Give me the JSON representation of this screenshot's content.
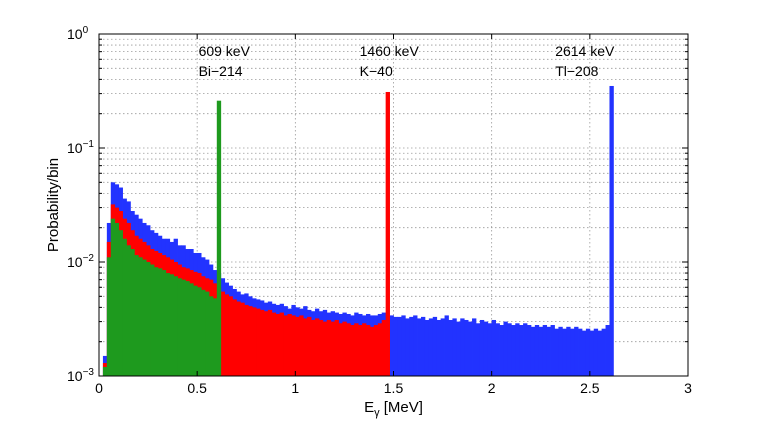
{
  "chart_data": {
    "type": "bar",
    "title": "",
    "xlabel_main": "E",
    "xlabel_sub": "γ",
    "xlabel_unit": " [MeV]",
    "ylabel": "Probability/bin",
    "xlim": [
      0,
      3
    ],
    "ylim": [
      0.001,
      1
    ],
    "yscale": "log",
    "grid": true,
    "legend": "none",
    "bin_width": 0.02,
    "x_ticks": [
      {
        "value": 0,
        "label": "0"
      },
      {
        "value": 0.5,
        "label": "0.5"
      },
      {
        "value": 1,
        "label": "1"
      },
      {
        "value": 1.5,
        "label": "1.5"
      },
      {
        "value": 2,
        "label": "2"
      },
      {
        "value": 2.5,
        "label": "2.5"
      },
      {
        "value": 3,
        "label": "3"
      }
    ],
    "y_ticks": [
      {
        "value": 0.001,
        "base": "10",
        "exp": "−3"
      },
      {
        "value": 0.01,
        "base": "10",
        "exp": "−2"
      },
      {
        "value": 0.1,
        "base": "10",
        "exp": "−1"
      },
      {
        "value": 1,
        "base": "10",
        "exp": "0"
      }
    ],
    "annotations": [
      {
        "energy": "609 keV",
        "isotope": "Bi−214",
        "x": 0.609
      },
      {
        "energy": "1460 keV",
        "isotope": "K−40",
        "x": 1.46
      },
      {
        "energy": "2614 keV",
        "isotope": "Tl−208",
        "x": 2.614
      }
    ],
    "series": [
      {
        "color": "#2233ff",
        "bins": [
          [
            0.03,
            0.0015
          ],
          [
            0.05,
            0.022
          ],
          [
            0.07,
            0.05
          ],
          [
            0.09,
            0.048
          ],
          [
            0.11,
            0.045
          ],
          [
            0.13,
            0.036
          ],
          [
            0.15,
            0.034
          ],
          [
            0.17,
            0.028
          ],
          [
            0.19,
            0.026
          ],
          [
            0.21,
            0.024
          ],
          [
            0.23,
            0.022
          ],
          [
            0.25,
            0.021
          ],
          [
            0.27,
            0.019
          ],
          [
            0.29,
            0.018
          ],
          [
            0.31,
            0.017
          ],
          [
            0.33,
            0.016
          ],
          [
            0.35,
            0.016
          ],
          [
            0.37,
            0.015
          ],
          [
            0.39,
            0.016
          ],
          [
            0.41,
            0.014
          ],
          [
            0.43,
            0.014
          ],
          [
            0.45,
            0.013
          ],
          [
            0.47,
            0.013
          ],
          [
            0.49,
            0.012
          ],
          [
            0.51,
            0.012
          ],
          [
            0.53,
            0.011
          ],
          [
            0.55,
            0.0105
          ],
          [
            0.57,
            0.0095
          ],
          [
            0.59,
            0.0085
          ],
          [
            0.61,
            0.008
          ],
          [
            0.63,
            0.0072
          ],
          [
            0.65,
            0.0066
          ],
          [
            0.67,
            0.0062
          ],
          [
            0.69,
            0.0058
          ],
          [
            0.71,
            0.0055
          ],
          [
            0.73,
            0.0052
          ],
          [
            0.75,
            0.0053
          ],
          [
            0.77,
            0.005
          ],
          [
            0.79,
            0.0048
          ],
          [
            0.81,
            0.0047
          ],
          [
            0.83,
            0.0046
          ],
          [
            0.85,
            0.0044
          ],
          [
            0.87,
            0.0045
          ],
          [
            0.89,
            0.0043
          ],
          [
            0.91,
            0.0042
          ],
          [
            0.93,
            0.0043
          ],
          [
            0.95,
            0.0041
          ],
          [
            0.97,
            0.0039
          ],
          [
            0.99,
            0.0042
          ],
          [
            1.01,
            0.004
          ],
          [
            1.03,
            0.0039
          ],
          [
            1.05,
            0.0041
          ],
          [
            1.07,
            0.0038
          ],
          [
            1.09,
            0.0037
          ],
          [
            1.11,
            0.0039
          ],
          [
            1.13,
            0.0037
          ],
          [
            1.15,
            0.0038
          ],
          [
            1.17,
            0.0036
          ],
          [
            1.19,
            0.0037
          ],
          [
            1.21,
            0.0036
          ],
          [
            1.23,
            0.0035
          ],
          [
            1.25,
            0.0036
          ],
          [
            1.27,
            0.0035
          ],
          [
            1.29,
            0.0034
          ],
          [
            1.31,
            0.0036
          ],
          [
            1.33,
            0.0035
          ],
          [
            1.35,
            0.0034
          ],
          [
            1.37,
            0.0035
          ],
          [
            1.39,
            0.0034
          ],
          [
            1.41,
            0.0034
          ],
          [
            1.43,
            0.0035
          ],
          [
            1.45,
            0.0036
          ],
          [
            1.47,
            0.0034
          ],
          [
            1.49,
            0.0034
          ],
          [
            1.51,
            0.0033
          ],
          [
            1.53,
            0.0033
          ],
          [
            1.55,
            0.0034
          ],
          [
            1.57,
            0.0032
          ],
          [
            1.59,
            0.0033
          ],
          [
            1.61,
            0.0034
          ],
          [
            1.63,
            0.0032
          ],
          [
            1.65,
            0.0033
          ],
          [
            1.67,
            0.0031
          ],
          [
            1.69,
            0.0032
          ],
          [
            1.71,
            0.0033
          ],
          [
            1.73,
            0.0031
          ],
          [
            1.75,
            0.0032
          ],
          [
            1.77,
            0.0034
          ],
          [
            1.79,
            0.0031
          ],
          [
            1.81,
            0.0032
          ],
          [
            1.83,
            0.003
          ],
          [
            1.85,
            0.0032
          ],
          [
            1.87,
            0.0031
          ],
          [
            1.89,
            0.003
          ],
          [
            1.91,
            0.0032
          ],
          [
            1.93,
            0.0029
          ],
          [
            1.95,
            0.0031
          ],
          [
            1.97,
            0.003
          ],
          [
            1.99,
            0.0029
          ],
          [
            2.01,
            0.0031
          ],
          [
            2.03,
            0.0029
          ],
          [
            2.05,
            0.0028
          ],
          [
            2.07,
            0.003
          ],
          [
            2.09,
            0.0029
          ],
          [
            2.11,
            0.0028
          ],
          [
            2.13,
            0.0029
          ],
          [
            2.15,
            0.0028
          ],
          [
            2.17,
            0.0029
          ],
          [
            2.19,
            0.0028
          ],
          [
            2.21,
            0.0027
          ],
          [
            2.23,
            0.0028
          ],
          [
            2.25,
            0.0027
          ],
          [
            2.27,
            0.0028
          ],
          [
            2.29,
            0.0027
          ],
          [
            2.31,
            0.0028
          ],
          [
            2.33,
            0.0026
          ],
          [
            2.35,
            0.0027
          ],
          [
            2.37,
            0.0026
          ],
          [
            2.39,
            0.0027
          ],
          [
            2.41,
            0.0026
          ],
          [
            2.43,
            0.0027
          ],
          [
            2.45,
            0.0026
          ],
          [
            2.47,
            0.0025
          ],
          [
            2.49,
            0.0026
          ],
          [
            2.51,
            0.0025
          ],
          [
            2.53,
            0.0026
          ],
          [
            2.55,
            0.0025
          ],
          [
            2.57,
            0.0026
          ],
          [
            2.59,
            0.0028
          ],
          [
            2.61,
            0.35
          ]
        ]
      },
      {
        "color": "#ff0000",
        "bins": [
          [
            0.03,
            0.0013
          ],
          [
            0.05,
            0.015
          ],
          [
            0.07,
            0.032
          ],
          [
            0.09,
            0.03
          ],
          [
            0.11,
            0.028
          ],
          [
            0.13,
            0.024
          ],
          [
            0.15,
            0.022
          ],
          [
            0.17,
            0.019
          ],
          [
            0.19,
            0.017
          ],
          [
            0.21,
            0.016
          ],
          [
            0.23,
            0.015
          ],
          [
            0.25,
            0.014
          ],
          [
            0.27,
            0.013
          ],
          [
            0.29,
            0.0125
          ],
          [
            0.31,
            0.012
          ],
          [
            0.33,
            0.0115
          ],
          [
            0.35,
            0.011
          ],
          [
            0.37,
            0.0105
          ],
          [
            0.39,
            0.01
          ],
          [
            0.41,
            0.0095
          ],
          [
            0.43,
            0.009
          ],
          [
            0.45,
            0.0088
          ],
          [
            0.47,
            0.0085
          ],
          [
            0.49,
            0.0082
          ],
          [
            0.51,
            0.008
          ],
          [
            0.53,
            0.0075
          ],
          [
            0.55,
            0.0072
          ],
          [
            0.57,
            0.007
          ],
          [
            0.59,
            0.0065
          ],
          [
            0.61,
            0.006
          ],
          [
            0.63,
            0.0055
          ],
          [
            0.65,
            0.0052
          ],
          [
            0.67,
            0.005
          ],
          [
            0.69,
            0.0047
          ],
          [
            0.71,
            0.0045
          ],
          [
            0.73,
            0.0044
          ],
          [
            0.75,
            0.0042
          ],
          [
            0.77,
            0.0041
          ],
          [
            0.79,
            0.004
          ],
          [
            0.81,
            0.0039
          ],
          [
            0.83,
            0.0038
          ],
          [
            0.85,
            0.0037
          ],
          [
            0.87,
            0.0038
          ],
          [
            0.89,
            0.0036
          ],
          [
            0.91,
            0.0035
          ],
          [
            0.93,
            0.0036
          ],
          [
            0.95,
            0.0034
          ],
          [
            0.97,
            0.0035
          ],
          [
            0.99,
            0.0034
          ],
          [
            1.01,
            0.0033
          ],
          [
            1.03,
            0.0034
          ],
          [
            1.05,
            0.0032
          ],
          [
            1.07,
            0.0033
          ],
          [
            1.09,
            0.0031
          ],
          [
            1.11,
            0.0032
          ],
          [
            1.13,
            0.0031
          ],
          [
            1.15,
            0.003
          ],
          [
            1.17,
            0.0031
          ],
          [
            1.19,
            0.003
          ],
          [
            1.21,
            0.0031
          ],
          [
            1.23,
            0.0029
          ],
          [
            1.25,
            0.003
          ],
          [
            1.27,
            0.0029
          ],
          [
            1.29,
            0.0028
          ],
          [
            1.31,
            0.0029
          ],
          [
            1.33,
            0.0028
          ],
          [
            1.35,
            0.0029
          ],
          [
            1.37,
            0.0028
          ],
          [
            1.39,
            0.0027
          ],
          [
            1.41,
            0.0028
          ],
          [
            1.43,
            0.0029
          ],
          [
            1.45,
            0.0031
          ],
          [
            1.47,
            0.31
          ]
        ]
      },
      {
        "color": "#1e9a1e",
        "bins": [
          [
            0.03,
            0.0012
          ],
          [
            0.05,
            0.011
          ],
          [
            0.07,
            0.024
          ],
          [
            0.09,
            0.022
          ],
          [
            0.11,
            0.019
          ],
          [
            0.13,
            0.016
          ],
          [
            0.15,
            0.014
          ],
          [
            0.17,
            0.013
          ],
          [
            0.19,
            0.0115
          ],
          [
            0.21,
            0.011
          ],
          [
            0.23,
            0.0105
          ],
          [
            0.25,
            0.01
          ],
          [
            0.27,
            0.0095
          ],
          [
            0.29,
            0.009
          ],
          [
            0.31,
            0.0088
          ],
          [
            0.33,
            0.0085
          ],
          [
            0.35,
            0.008
          ],
          [
            0.37,
            0.0078
          ],
          [
            0.39,
            0.0075
          ],
          [
            0.41,
            0.0072
          ],
          [
            0.43,
            0.007
          ],
          [
            0.45,
            0.0068
          ],
          [
            0.47,
            0.0065
          ],
          [
            0.49,
            0.0062
          ],
          [
            0.51,
            0.006
          ],
          [
            0.53,
            0.0057
          ],
          [
            0.55,
            0.0055
          ],
          [
            0.57,
            0.005
          ],
          [
            0.59,
            0.0048
          ],
          [
            0.61,
            0.26
          ]
        ]
      }
    ]
  }
}
